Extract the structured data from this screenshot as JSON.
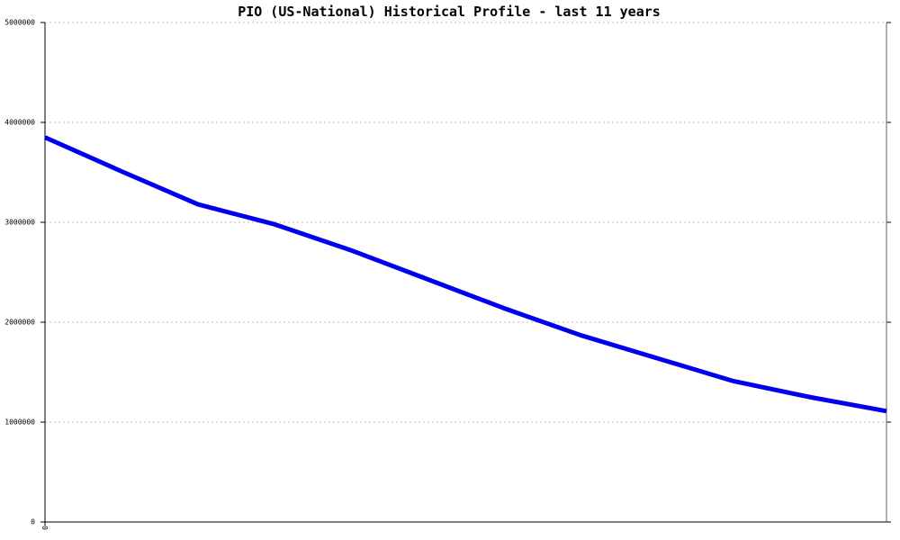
{
  "chart_data": {
    "type": "line",
    "title": "PIO (US-National) Historical Profile - last 11 years",
    "categories": [
      "0",
      null,
      null,
      null,
      null,
      null,
      null,
      null,
      null,
      null,
      null,
      null
    ],
    "series": [
      {
        "name": "PIO",
        "color": "#0000ee",
        "values": [
          3850000,
          3510000,
          3180000,
          2980000,
          2720000,
          2430000,
          2140000,
          1870000,
          1640000,
          1410000,
          1250000,
          1110000
        ]
      }
    ],
    "ylim": [
      0,
      5000000
    ],
    "yticks": [
      0,
      1000000,
      2000000,
      3000000,
      4000000,
      5000000
    ],
    "grid": true
  }
}
